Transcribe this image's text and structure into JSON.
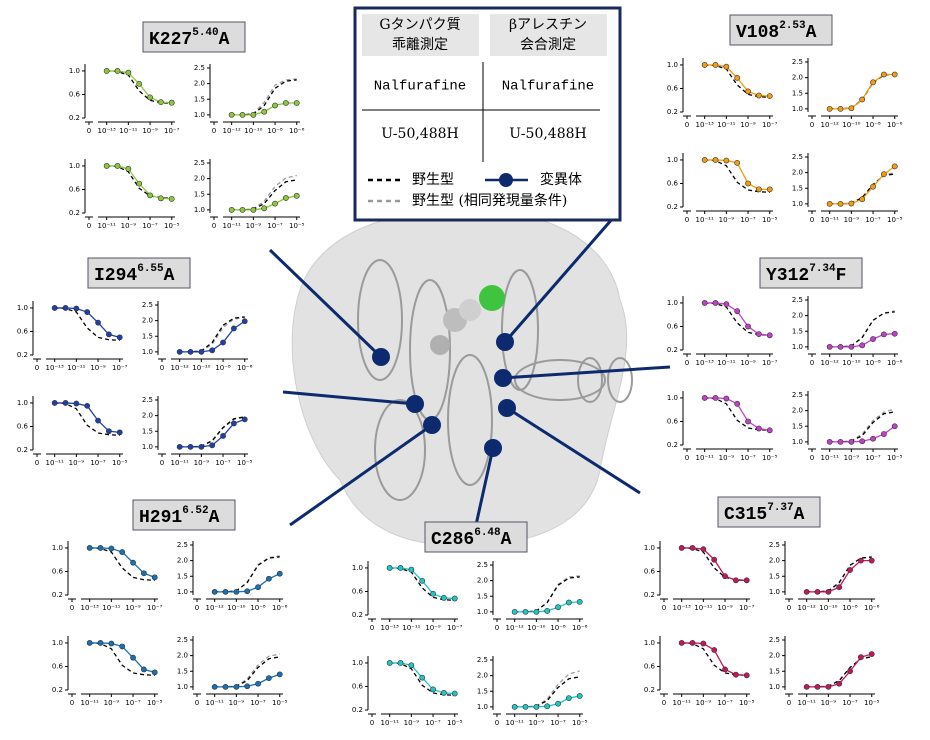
{
  "legend": {
    "header": [
      [
        "Gタンパク質",
        "乖離測定"
      ],
      [
        "βアレスチン",
        "会合測定"
      ]
    ],
    "rows": [
      [
        "Nalfurafine",
        "Nalfurafine"
      ],
      [
        "U-50,488H",
        "U-50,488H"
      ]
    ],
    "series_names": [
      "野生型",
      "野生型 (相同発現量条件)",
      "変異体"
    ],
    "series_colors": [
      "#000000",
      "#9a9a9a",
      "#0d2a6e"
    ]
  },
  "panel_axes": [
    {
      "type": "line",
      "x_scale": "log",
      "x_zero_label": "0",
      "x": [
        1e-13,
        1e-12,
        1e-11,
        1e-10,
        1e-09,
        1e-08,
        1e-07
      ],
      "xlim": [
        3e-14,
        2e-07
      ],
      "xticks": [
        {
          "value": 1e-13,
          "label": "10⁻¹³"
        },
        {
          "value": 1e-11,
          "label": "10⁻¹¹"
        },
        {
          "value": 1e-09,
          "label": "10⁻⁹"
        },
        {
          "value": 1e-07,
          "label": "10⁻⁷"
        }
      ],
      "ylim": [
        0.2,
        1.05
      ],
      "yticks": [
        0.2,
        0.6,
        {
          "value": 1,
          "label": "1.0"
        }
      ],
      "wt": [
        1.0,
        0.99,
        0.93,
        0.66,
        0.5,
        0.46,
        0.45
      ]
    },
    {
      "type": "line",
      "x_scale": "log",
      "x_zero_label": "0",
      "x": [
        1e-12,
        1e-11,
        1e-10,
        1e-09,
        1e-08,
        1e-07,
        1e-06
      ],
      "xlim": [
        3e-13,
        2e-06
      ],
      "xticks": [
        {
          "value": 1e-12,
          "label": "10⁻¹²"
        },
        {
          "value": 1e-10,
          "label": "10⁻¹⁰"
        },
        {
          "value": 1e-08,
          "label": "10⁻⁸"
        },
        {
          "value": 1e-06,
          "label": "10⁻⁶"
        }
      ],
      "ylim": [
        0.9,
        2.5
      ],
      "yticks": [
        {
          "value": 1,
          "label": "1.0"
        },
        1.5,
        {
          "value": 2,
          "label": "2.0"
        },
        2.5
      ],
      "wt": [
        1.0,
        1.0,
        1.03,
        1.3,
        1.85,
        2.08,
        2.12
      ]
    },
    {
      "type": "line",
      "x_scale": "log",
      "x_zero_label": "0",
      "x": [
        1e-11,
        1e-10,
        1e-09,
        1e-08,
        1e-07,
        1e-06,
        1e-05
      ],
      "xlim": [
        3e-12,
        2e-05
      ],
      "xticks": [
        {
          "value": 1e-11,
          "label": "10⁻¹¹"
        },
        {
          "value": 1e-09,
          "label": "10⁻⁹"
        },
        {
          "value": 1e-07,
          "label": "10⁻⁷"
        },
        {
          "value": 1e-05,
          "label": "10⁻⁵"
        }
      ],
      "ylim": [
        0.2,
        1.05
      ],
      "yticks": [
        0.2,
        0.6,
        {
          "value": 1,
          "label": "1.0"
        }
      ],
      "wt": [
        1.0,
        0.99,
        0.9,
        0.62,
        0.49,
        0.46,
        0.45
      ]
    },
    {
      "type": "line",
      "x_scale": "log",
      "x_zero_label": "0",
      "x": [
        1e-11,
        1e-10,
        1e-09,
        1e-08,
        1e-07,
        1e-06,
        1e-05
      ],
      "xlim": [
        3e-12,
        2e-05
      ],
      "xticks": [
        {
          "value": 1e-11,
          "label": "10⁻¹¹"
        },
        {
          "value": 1e-09,
          "label": "10⁻⁹"
        },
        {
          "value": 1e-07,
          "label": "10⁻⁷"
        },
        {
          "value": 1e-05,
          "label": "10⁻⁵"
        }
      ],
      "ylim": [
        0.9,
        2.5
      ],
      "yticks": [
        {
          "value": 1,
          "label": "1.0"
        },
        1.5,
        {
          "value": 2,
          "label": "2.0"
        },
        2.5
      ],
      "wt": [
        1.0,
        1.0,
        1.02,
        1.2,
        1.62,
        1.9,
        1.96
      ]
    }
  ],
  "mutants": [
    {
      "residue": "K227",
      "bw": "5.40",
      "mutation": "A",
      "color": "#8dc63f",
      "panels": [
        {
          "mutant": [
            1,
            1,
            0.97,
            0.78,
            0.55,
            0.47,
            0.46
          ]
        },
        {
          "mutant": [
            1,
            1,
            1,
            1.1,
            1.3,
            1.38,
            1.38
          ],
          "matched": [
            1,
            1,
            1.04,
            1.4,
            1.95,
            2.12,
            2.15
          ]
        },
        {
          "mutant": [
            1,
            1,
            0.95,
            0.7,
            0.5,
            0.45,
            0.44
          ]
        },
        {
          "mutant": [
            1,
            1,
            1,
            1.05,
            1.2,
            1.38,
            1.45
          ],
          "matched": [
            1,
            1,
            1.03,
            1.28,
            1.75,
            2.02,
            2.1
          ]
        }
      ]
    },
    {
      "residue": "I294",
      "bw": "6.55",
      "mutation": "A",
      "color": "#1f3fae",
      "panels": [
        {
          "mutant": [
            1,
            1,
            0.99,
            0.93,
            0.75,
            0.55,
            0.5
          ]
        },
        {
          "mutant": [
            1,
            1,
            1,
            1.05,
            1.3,
            1.75,
            1.98
          ],
          "matched": [
            1,
            1,
            1.02,
            1.25,
            1.78,
            2.05,
            2.1
          ]
        },
        {
          "mutant": [
            1,
            1,
            0.99,
            0.95,
            0.7,
            0.52,
            0.5
          ]
        },
        {
          "mutant": [
            1,
            1,
            1,
            1.05,
            1.35,
            1.75,
            1.88
          ],
          "matched": [
            1,
            1,
            1.02,
            1.18,
            1.6,
            1.88,
            1.95
          ]
        }
      ]
    },
    {
      "residue": "H291",
      "bw": "6.52",
      "mutation": "A",
      "color": "#1a6fb5",
      "panels": [
        {
          "mutant": [
            1,
            1,
            0.99,
            0.93,
            0.75,
            0.57,
            0.5
          ]
        },
        {
          "mutant": [
            1,
            1,
            1,
            1.02,
            1.15,
            1.42,
            1.58
          ],
          "matched": [
            1,
            1,
            1.03,
            1.3,
            1.87,
            2.1,
            2.15
          ]
        },
        {
          "mutant": [
            1,
            1,
            0.99,
            0.94,
            0.75,
            0.55,
            0.5
          ]
        },
        {
          "mutant": [
            1,
            1,
            1,
            1.02,
            1.1,
            1.28,
            1.4
          ],
          "matched": [
            1,
            1,
            1.02,
            1.25,
            1.7,
            1.98,
            2.05
          ]
        }
      ]
    },
    {
      "residue": "C286",
      "bw": "6.48",
      "mutation": "A",
      "color": "#22c4c4",
      "panels": [
        {
          "mutant": [
            1,
            1,
            0.97,
            0.78,
            0.56,
            0.49,
            0.48
          ]
        },
        {
          "mutant": [
            1,
            1,
            1,
            1.03,
            1.15,
            1.3,
            1.32
          ],
          "matched": [
            1,
            1,
            1.03,
            1.3,
            1.88,
            2.12,
            2.15
          ]
        },
        {
          "mutant": [
            1,
            1,
            0.96,
            0.75,
            0.55,
            0.49,
            0.48
          ]
        },
        {
          "mutant": [
            1,
            1,
            1,
            1.02,
            1.1,
            1.28,
            1.35
          ],
          "matched": [
            1,
            1,
            1.02,
            1.25,
            1.72,
            2.05,
            2.15
          ]
        }
      ]
    },
    {
      "residue": "V108",
      "bw": "2.53",
      "mutation": "A",
      "color": "#f39c12",
      "panels": [
        {
          "mutant": [
            1,
            1,
            0.97,
            0.78,
            0.55,
            0.48,
            0.47
          ]
        },
        {
          "mutant": [
            1,
            1,
            1.02,
            1.3,
            1.85,
            2.1,
            2.1
          ],
          "matched": [
            1,
            1,
            1.02,
            1.28,
            1.82,
            2.08,
            2.12
          ]
        },
        {
          "mutant": [
            1,
            1,
            0.99,
            0.95,
            0.6,
            0.5,
            0.5
          ]
        },
        {
          "mutant": [
            1,
            1,
            1.01,
            1.15,
            1.55,
            1.95,
            2.2
          ],
          "matched": [
            1,
            1,
            1.02,
            1.2,
            1.62,
            1.92,
            2.0
          ]
        }
      ]
    },
    {
      "residue": "Y312",
      "bw": "7.34",
      "mutation": "F",
      "color": "#c040c8",
      "panels": [
        {
          "mutant": [
            1,
            1,
            0.98,
            0.86,
            0.6,
            0.47,
            0.45
          ]
        },
        {
          "mutant": [
            1,
            1,
            1,
            1.05,
            1.25,
            1.4,
            1.42
          ],
          "matched": [
            1,
            1,
            1.03,
            1.3,
            1.85,
            2.08,
            2.15
          ]
        },
        {
          "mutant": [
            1,
            1,
            0.99,
            0.9,
            0.6,
            0.48,
            0.45
          ]
        },
        {
          "mutant": [
            1,
            1,
            1,
            1.02,
            1.1,
            1.25,
            1.5
          ],
          "matched": [
            1,
            1,
            1.03,
            1.25,
            1.68,
            1.95,
            2.05
          ]
        }
      ]
    },
    {
      "residue": "C315",
      "bw": "7.37",
      "mutation": "A",
      "color": "#c2185b",
      "panels": [
        {
          "mutant": [
            1,
            1,
            0.98,
            0.8,
            0.52,
            0.45,
            0.45
          ]
        },
        {
          "mutant": [
            1,
            1,
            1,
            1.15,
            1.7,
            2.0,
            2.0
          ],
          "matched": [
            1,
            1,
            1.03,
            1.28,
            1.85,
            2.08,
            2.1
          ]
        },
        {
          "mutant": [
            1,
            1,
            0.99,
            0.88,
            0.55,
            0.46,
            0.45
          ]
        },
        {
          "mutant": [
            1,
            1,
            1,
            1.1,
            1.5,
            1.95,
            2.05
          ],
          "matched": [
            1,
            1,
            1.02,
            1.2,
            1.62,
            1.9,
            1.98
          ]
        }
      ]
    }
  ]
}
